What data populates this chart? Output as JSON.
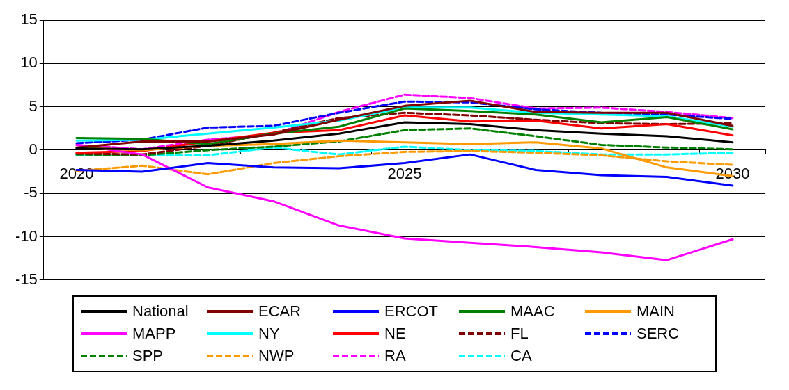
{
  "chart_data": {
    "type": "line",
    "categories": [
      "2020",
      null,
      null,
      null,
      null,
      "2025",
      null,
      null,
      null,
      null,
      "2030"
    ],
    "ylim": [
      -15,
      15
    ],
    "yticks": [
      -15,
      -10,
      -5,
      0,
      5,
      10,
      15
    ],
    "grid": "y",
    "legend": "bottom",
    "marker": "none",
    "series": [
      {
        "name": "National",
        "color": "#000000",
        "line_style": "solid",
        "values": [
          0.2,
          0.1,
          0.5,
          1.1,
          1.9,
          3.2,
          3.0,
          2.3,
          1.9,
          1.6,
          0.9
        ]
      },
      {
        "name": "ECAR",
        "color": "#800000",
        "line_style": "solid",
        "values": [
          0.3,
          1.0,
          1.0,
          1.8,
          3.5,
          5.1,
          5.7,
          4.4,
          4.3,
          4.3,
          2.8
        ]
      },
      {
        "name": "ERCOT",
        "color": "#0000ff",
        "line_style": "solid",
        "values": [
          -2.3,
          -2.5,
          -1.5,
          -2.0,
          -2.1,
          -1.5,
          -0.5,
          -2.3,
          -2.9,
          -3.1,
          -4.1
        ]
      },
      {
        "name": "MAAC",
        "color": "#008000",
        "line_style": "solid",
        "values": [
          1.4,
          1.3,
          0.7,
          1.9,
          2.7,
          4.8,
          4.5,
          4.1,
          3.2,
          3.8,
          2.4
        ]
      },
      {
        "name": "MAIN",
        "color": "#ff9900",
        "line_style": "solid",
        "values": [
          0.3,
          0.0,
          0.5,
          0.7,
          1.1,
          0.9,
          0.7,
          0.9,
          0.2,
          -2.0,
          -3.0
        ]
      },
      {
        "name": "MAPP",
        "color": "#ff00ff",
        "line_style": "solid",
        "values": [
          0.6,
          -0.5,
          -4.3,
          -5.9,
          -8.7,
          -10.2,
          -10.7,
          -11.2,
          -11.8,
          -12.7,
          -10.3
        ]
      },
      {
        "name": "NY",
        "color": "#00ffff",
        "line_style": "solid",
        "values": [
          1.1,
          1.2,
          1.9,
          2.6,
          3.4,
          4.9,
          4.9,
          4.3,
          4.1,
          3.9,
          2.7
        ]
      },
      {
        "name": "NE",
        "color": "#ff0000",
        "line_style": "solid",
        "values": [
          -0.3,
          -0.1,
          1.0,
          2.0,
          2.3,
          4.0,
          3.3,
          3.4,
          2.5,
          3.0,
          1.7
        ]
      },
      {
        "name": "FL",
        "color": "#800000",
        "line_style": "dashed",
        "values": [
          -0.4,
          -0.5,
          0.5,
          2.0,
          3.7,
          4.3,
          4.0,
          3.5,
          3.1,
          3.0,
          3.1
        ]
      },
      {
        "name": "SERC",
        "color": "#0000ff",
        "line_style": "dashed",
        "values": [
          0.8,
          1.2,
          2.6,
          2.8,
          4.3,
          5.6,
          5.5,
          4.7,
          4.3,
          4.1,
          3.6
        ]
      },
      {
        "name": "SPP",
        "color": "#008000",
        "line_style": "dashed",
        "values": [
          -0.5,
          -0.6,
          0.0,
          0.4,
          1.0,
          2.3,
          2.5,
          1.6,
          0.6,
          0.3,
          0.1
        ]
      },
      {
        "name": "NWP",
        "color": "#ff9900",
        "line_style": "dashed",
        "values": [
          -2.4,
          -1.8,
          -2.8,
          -1.5,
          -0.7,
          -0.2,
          -0.1,
          -0.3,
          -0.6,
          -1.3,
          -1.7
        ]
      },
      {
        "name": "RA",
        "color": "#ff00ff",
        "line_style": "dashed",
        "values": [
          0.6,
          0.1,
          1.2,
          1.8,
          4.4,
          6.4,
          6.0,
          4.8,
          4.9,
          4.4,
          3.7
        ]
      },
      {
        "name": "CA",
        "color": "#00ffff",
        "line_style": "dashed",
        "values": [
          -0.6,
          -0.6,
          -0.6,
          0.3,
          -0.5,
          0.4,
          0.0,
          -0.1,
          -0.5,
          -0.5,
          -0.3
        ]
      }
    ]
  }
}
